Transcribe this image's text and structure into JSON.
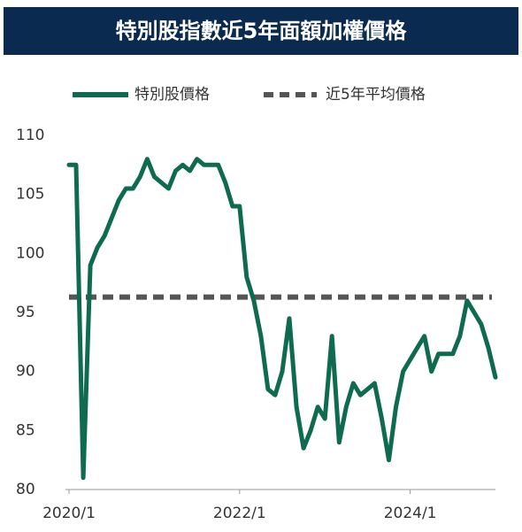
{
  "chart_data": {
    "type": "line",
    "title": "特別股指數近5年面額加權價格",
    "x": [
      "2020/1",
      "2020/2",
      "2020/3",
      "2020/4",
      "2020/5",
      "2020/6",
      "2020/7",
      "2020/8",
      "2020/9",
      "2020/10",
      "2020/11",
      "2020/12",
      "2021/1",
      "2021/2",
      "2021/3",
      "2021/4",
      "2021/5",
      "2021/6",
      "2021/7",
      "2021/8",
      "2021/9",
      "2021/10",
      "2021/11",
      "2021/12",
      "2022/1",
      "2022/2",
      "2022/3",
      "2022/4",
      "2022/5",
      "2022/6",
      "2022/7",
      "2022/8",
      "2022/9",
      "2022/10",
      "2022/11",
      "2022/12",
      "2023/1",
      "2023/2",
      "2023/3",
      "2023/4",
      "2023/5",
      "2023/6",
      "2023/7",
      "2023/8",
      "2023/9",
      "2023/10",
      "2023/11",
      "2023/12",
      "2024/1",
      "2024/2",
      "2024/3",
      "2024/4",
      "2024/5",
      "2024/6",
      "2024/7",
      "2024/8",
      "2024/9",
      "2024/10",
      "2024/11",
      "2024/12",
      "2025/1"
    ],
    "series": [
      {
        "name": "特別股價格",
        "color": "#0e6b50",
        "values": [
          107.5,
          107.5,
          81,
          99,
          100.5,
          101.5,
          103,
          104.5,
          105.5,
          105.5,
          106.5,
          108,
          106.5,
          106,
          105.5,
          107,
          107.5,
          107,
          108,
          107.5,
          107.5,
          107.5,
          106,
          104,
          104,
          98,
          96,
          93,
          88.5,
          88,
          90,
          94.5,
          87,
          83.5,
          85,
          87,
          86,
          93,
          84,
          87,
          89,
          88,
          88.5,
          89,
          86,
          82.5,
          87,
          90,
          91,
          92,
          93,
          90,
          91.5,
          91.5,
          91.5,
          93,
          96,
          95,
          94,
          92,
          89.5
        ]
      }
    ],
    "average": {
      "name": "近5年平均價格",
      "color": "#555555",
      "value": 96.3
    },
    "ylim": [
      80,
      110
    ],
    "yticks": [
      80,
      85,
      90,
      95,
      100,
      105,
      110
    ],
    "xticks": [
      "2020/1",
      "2022/1",
      "2024/1"
    ]
  }
}
